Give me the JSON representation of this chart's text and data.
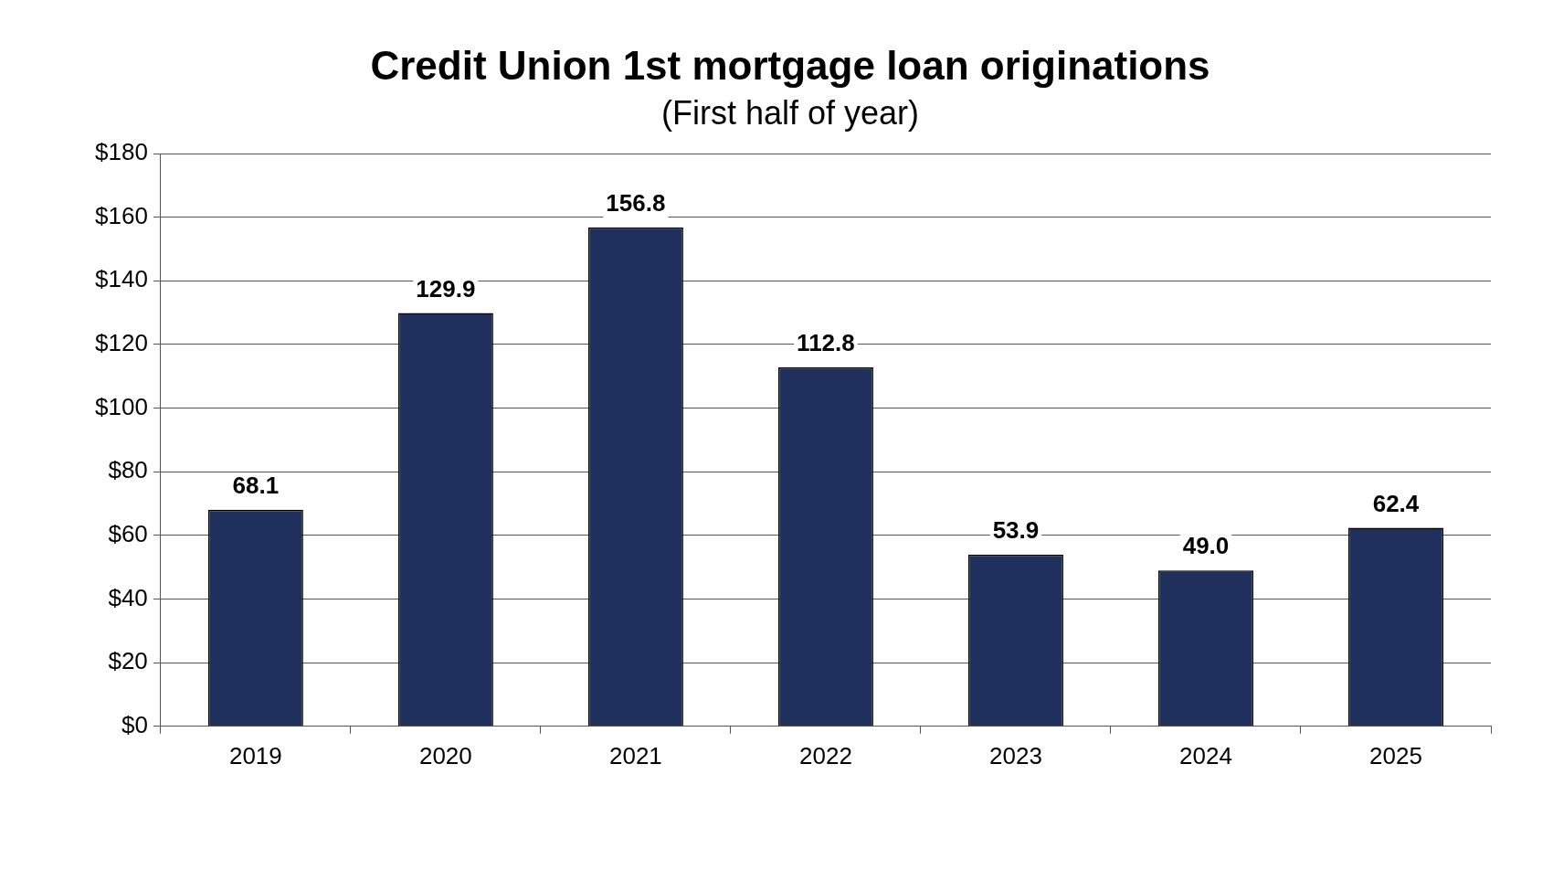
{
  "chart_data": {
    "type": "bar",
    "title": "Credit Union 1st mortgage loan originations",
    "subtitle": "(First half of year)",
    "categories": [
      "2019",
      "2020",
      "2021",
      "2022",
      "2023",
      "2024",
      "2025"
    ],
    "values": [
      68.1,
      129.9,
      156.8,
      112.8,
      53.9,
      49.0,
      62.4
    ],
    "value_labels": [
      "68.1",
      "129.9",
      "156.8",
      "112.8",
      "53.9",
      "49.0",
      "62.4"
    ],
    "color": "#20305c",
    "ylim": [
      0,
      180
    ],
    "yticks": [
      {
        "value": 0,
        "label": "$0"
      },
      {
        "value": 20,
        "label": "$20"
      },
      {
        "value": 40,
        "label": "$40"
      },
      {
        "value": 60,
        "label": "$60"
      },
      {
        "value": 80,
        "label": "$80"
      },
      {
        "value": 100,
        "label": "$100"
      },
      {
        "value": 120,
        "label": "$120"
      },
      {
        "value": 140,
        "label": "$140"
      },
      {
        "value": 160,
        "label": "$160"
      },
      {
        "value": 180,
        "label": "$180"
      }
    ],
    "grid": "y"
  }
}
